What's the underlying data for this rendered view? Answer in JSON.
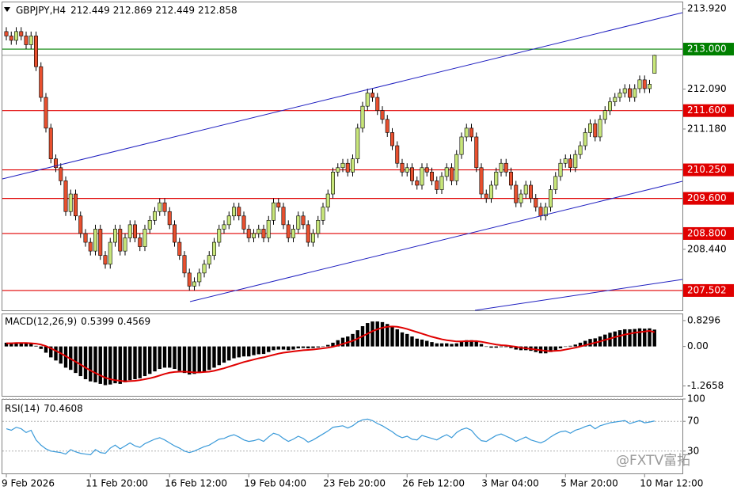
{
  "chart_data": [
    {
      "type": "candlestick",
      "title": "GBPJPY,H4",
      "up_color": "#c8e67a",
      "down_color": "#e8502f",
      "open": [
        213.4,
        213.3,
        213.2,
        213.4,
        213.3,
        213.1,
        213.3,
        212.6,
        211.9,
        211.2,
        210.5,
        210.3,
        210.0,
        209.3,
        209.7,
        209.2,
        208.8,
        208.6,
        208.4,
        208.9,
        208.3,
        208.1,
        208.6,
        208.9,
        208.4,
        208.7,
        209.0,
        208.7,
        208.5,
        208.9,
        209.1,
        209.3,
        209.5,
        209.3,
        209.0,
        208.6,
        208.3,
        207.9,
        207.6,
        207.7,
        207.9,
        208.1,
        208.3,
        208.6,
        208.9,
        209.0,
        209.2,
        209.4,
        209.2,
        208.9,
        208.7,
        208.8,
        208.9,
        208.7,
        209.1,
        209.5,
        209.4,
        209.0,
        208.7,
        208.9,
        209.2,
        209.0,
        208.6,
        208.8,
        209.1,
        209.4,
        209.7,
        210.2,
        210.3,
        210.4,
        210.2,
        210.5,
        211.2,
        211.7,
        212.0,
        211.9,
        211.6,
        211.4,
        211.1,
        210.8,
        210.4,
        210.2,
        210.3,
        210.0,
        209.9,
        210.3,
        210.2,
        210.0,
        209.8,
        210.1,
        210.3,
        210.0,
        210.6,
        211.0,
        211.2,
        211.0,
        210.3,
        209.7,
        209.6,
        209.9,
        210.2,
        210.4,
        210.2,
        209.9,
        209.5,
        209.7,
        209.9,
        209.6,
        209.4,
        209.2,
        209.4,
        209.8,
        210.1,
        210.4,
        210.5,
        210.3,
        210.6,
        210.8,
        211.1,
        211.3,
        211.0,
        211.4,
        211.6,
        211.8,
        211.9,
        212.0,
        212.1,
        211.9,
        212.1,
        212.3,
        212.1,
        212.449
      ],
      "high": [
        213.5,
        213.4,
        213.5,
        213.5,
        213.4,
        213.4,
        213.4,
        212.7,
        212.0,
        211.3,
        210.6,
        210.4,
        210.1,
        209.8,
        209.8,
        209.3,
        208.9,
        208.7,
        209.0,
        209.0,
        208.4,
        208.7,
        209.0,
        209.0,
        208.8,
        209.1,
        209.1,
        208.8,
        209.0,
        209.2,
        209.4,
        209.6,
        209.6,
        209.4,
        209.1,
        208.7,
        208.4,
        208.0,
        207.8,
        208.0,
        208.2,
        208.4,
        208.7,
        209.0,
        209.1,
        209.3,
        209.5,
        209.5,
        209.3,
        209.0,
        208.9,
        209.0,
        209.0,
        209.2,
        209.6,
        209.6,
        209.5,
        209.1,
        209.0,
        209.3,
        209.3,
        209.1,
        208.9,
        209.2,
        209.5,
        209.8,
        210.3,
        210.4,
        210.5,
        210.5,
        210.6,
        211.3,
        211.8,
        212.1,
        212.1,
        212.0,
        211.7,
        211.5,
        211.2,
        210.9,
        210.5,
        210.4,
        210.4,
        210.1,
        210.4,
        210.4,
        210.3,
        210.1,
        210.2,
        210.4,
        210.4,
        210.7,
        211.1,
        211.3,
        211.3,
        211.1,
        210.4,
        209.8,
        210.0,
        210.3,
        210.5,
        210.5,
        210.3,
        210.0,
        209.8,
        210.0,
        210.0,
        209.7,
        209.5,
        209.5,
        209.9,
        210.2,
        210.5,
        210.6,
        210.6,
        210.7,
        210.9,
        211.2,
        211.4,
        211.4,
        211.5,
        211.7,
        211.9,
        212.0,
        212.1,
        212.2,
        212.2,
        212.2,
        212.4,
        212.4,
        212.3,
        212.869
      ],
      "low": [
        213.2,
        213.1,
        213.1,
        213.2,
        213.0,
        213.0,
        212.5,
        211.8,
        211.1,
        210.4,
        210.2,
        209.9,
        209.2,
        209.2,
        209.1,
        208.7,
        208.5,
        208.3,
        208.3,
        208.2,
        208.0,
        208.0,
        208.5,
        208.3,
        208.3,
        208.6,
        208.6,
        208.4,
        208.4,
        208.8,
        209.0,
        209.2,
        209.2,
        208.9,
        208.5,
        208.2,
        207.8,
        207.5,
        207.5,
        207.6,
        207.8,
        208.0,
        208.2,
        208.5,
        208.8,
        208.9,
        209.1,
        209.1,
        208.8,
        208.6,
        208.6,
        208.7,
        208.6,
        208.6,
        209.0,
        209.3,
        208.9,
        208.6,
        208.6,
        208.8,
        208.9,
        208.5,
        208.5,
        208.7,
        209.0,
        209.3,
        209.6,
        210.1,
        210.2,
        210.1,
        210.1,
        210.4,
        211.1,
        211.6,
        211.8,
        211.5,
        211.3,
        211.0,
        210.7,
        210.3,
        210.1,
        210.1,
        209.9,
        209.8,
        209.8,
        210.1,
        209.9,
        209.7,
        209.7,
        210.0,
        209.9,
        209.9,
        210.5,
        210.9,
        210.9,
        210.2,
        209.6,
        209.5,
        209.5,
        209.8,
        210.1,
        210.1,
        209.8,
        209.4,
        209.4,
        209.6,
        209.5,
        209.3,
        209.1,
        209.1,
        209.3,
        209.7,
        210.0,
        210.3,
        210.2,
        210.2,
        210.5,
        210.7,
        211.0,
        210.9,
        210.9,
        211.3,
        211.5,
        211.7,
        211.8,
        211.9,
        211.8,
        211.8,
        212.0,
        212.0,
        212.0,
        212.449
      ],
      "close": [
        213.3,
        213.2,
        213.4,
        213.3,
        213.1,
        213.3,
        212.6,
        211.9,
        211.2,
        210.5,
        210.3,
        210.0,
        209.3,
        209.7,
        209.2,
        208.8,
        208.6,
        208.4,
        208.9,
        208.3,
        208.1,
        208.6,
        208.9,
        208.4,
        208.7,
        209.0,
        208.7,
        208.5,
        208.9,
        209.1,
        209.3,
        209.5,
        209.3,
        209.0,
        208.6,
        208.3,
        207.9,
        207.6,
        207.7,
        207.9,
        208.1,
        208.3,
        208.6,
        208.9,
        209.0,
        209.2,
        209.4,
        209.2,
        208.9,
        208.7,
        208.8,
        208.9,
        208.7,
        209.1,
        209.5,
        209.4,
        209.0,
        208.7,
        208.9,
        209.2,
        209.0,
        208.6,
        208.8,
        209.1,
        209.4,
        209.7,
        210.2,
        210.3,
        210.4,
        210.2,
        210.5,
        211.2,
        211.7,
        212.0,
        211.9,
        211.6,
        211.4,
        211.1,
        210.8,
        210.4,
        210.2,
        210.3,
        210.0,
        209.9,
        210.3,
        210.2,
        210.0,
        209.8,
        210.1,
        210.3,
        210.0,
        210.6,
        211.0,
        211.2,
        211.0,
        210.3,
        209.7,
        209.6,
        209.9,
        210.2,
        210.4,
        210.2,
        209.9,
        209.5,
        209.7,
        209.9,
        209.6,
        209.4,
        209.2,
        209.4,
        209.8,
        210.1,
        210.4,
        210.5,
        210.3,
        210.6,
        210.8,
        211.1,
        211.3,
        211.0,
        211.4,
        211.6,
        211.8,
        211.9,
        212.0,
        212.1,
        211.9,
        212.1,
        212.3,
        212.1,
        212.2,
        212.858
      ],
      "ylim": [
        207.05,
        214.083
      ],
      "yticks": [
        {
          "value": 213.92,
          "label": "213.920"
        },
        {
          "value": 212.09,
          "label": "212.090"
        },
        {
          "value": 211.18,
          "label": "211.180"
        },
        {
          "value": 208.44,
          "label": "208.440"
        }
      ],
      "levels": [
        {
          "value": 213,
          "label": "213.000",
          "color": "#008000"
        },
        {
          "value": 211.6,
          "label": "211.600",
          "color": "#e00000"
        },
        {
          "value": 210.25,
          "label": "210.250",
          "color": "#e00000"
        },
        {
          "value": 209.6,
          "label": "209.600",
          "color": "#e00000"
        },
        {
          "value": 208.8,
          "label": "208.800",
          "color": "#e00000"
        },
        {
          "value": 207.502,
          "color": "#e00000"
        }
      ],
      "xticks": [
        {
          "value": 0,
          "label": "9 Feb 2026"
        },
        {
          "value": 17,
          "label": "11 Feb 20:00"
        },
        {
          "value": 33,
          "label": "16 Feb 12:00"
        },
        {
          "value": 49,
          "label": "19 Feb 04:00"
        },
        {
          "value": 65,
          "label": "23 Feb 20:00"
        },
        {
          "value": 81,
          "label": "26 Feb 12:00"
        },
        {
          "value": 97,
          "label": "3 Mar 04:00"
        },
        {
          "value": 113,
          "label": "5 Mar 20:00"
        },
        {
          "value": 129,
          "label": "10 Mar 12:00"
        }
      ]
    },
    {
      "type": "macd",
      "title": "MACD(12,26,9)",
      "bar_color": "#000000",
      "signal_color": "#e00000",
      "histogram": [
        0.12,
        0.12,
        0.13,
        0.12,
        0.1,
        0.08,
        0.02,
        -0.08,
        -0.2,
        -0.35,
        -0.45,
        -0.55,
        -0.68,
        -0.75,
        -0.85,
        -0.95,
        -1.05,
        -1.12,
        -1.15,
        -1.2,
        -1.24,
        -1.22,
        -1.18,
        -1.2,
        -1.15,
        -1.08,
        -1.05,
        -1.02,
        -0.95,
        -0.88,
        -0.8,
        -0.72,
        -0.68,
        -0.68,
        -0.72,
        -0.78,
        -0.85,
        -0.9,
        -0.88,
        -0.85,
        -0.8,
        -0.75,
        -0.68,
        -0.6,
        -0.52,
        -0.45,
        -0.38,
        -0.35,
        -0.32,
        -0.32,
        -0.28,
        -0.25,
        -0.24,
        -0.18,
        -0.12,
        -0.1,
        -0.1,
        -0.12,
        -0.1,
        -0.06,
        -0.05,
        -0.06,
        -0.05,
        -0.03,
        0.0,
        0.05,
        0.12,
        0.2,
        0.28,
        0.32,
        0.4,
        0.52,
        0.65,
        0.75,
        0.8,
        0.8,
        0.78,
        0.72,
        0.65,
        0.55,
        0.45,
        0.4,
        0.32,
        0.25,
        0.22,
        0.18,
        0.14,
        0.1,
        0.1,
        0.1,
        0.08,
        0.1,
        0.15,
        0.2,
        0.2,
        0.16,
        0.08,
        0.0,
        -0.04,
        -0.04,
        -0.02,
        -0.02,
        -0.05,
        -0.1,
        -0.12,
        -0.12,
        -0.14,
        -0.18,
        -0.22,
        -0.22,
        -0.18,
        -0.12,
        -0.06,
        0.0,
        0.02,
        0.06,
        0.12,
        0.18,
        0.24,
        0.26,
        0.32,
        0.38,
        0.44,
        0.48,
        0.52,
        0.55,
        0.55,
        0.56,
        0.58,
        0.57,
        0.58,
        0.5399
      ],
      "signal": [
        0.1,
        0.1,
        0.11,
        0.11,
        0.11,
        0.1,
        0.09,
        0.06,
        0.01,
        -0.06,
        -0.14,
        -0.22,
        -0.31,
        -0.4,
        -0.49,
        -0.58,
        -0.68,
        -0.77,
        -0.85,
        -0.93,
        -1.0,
        -1.05,
        -1.08,
        -1.1,
        -1.12,
        -1.11,
        -1.1,
        -1.08,
        -1.05,
        -1.02,
        -0.98,
        -0.93,
        -0.88,
        -0.84,
        -0.82,
        -0.81,
        -0.81,
        -0.82,
        -0.83,
        -0.83,
        -0.82,
        -0.81,
        -0.78,
        -0.74,
        -0.7,
        -0.65,
        -0.6,
        -0.55,
        -0.5,
        -0.46,
        -0.42,
        -0.38,
        -0.35,
        -0.31,
        -0.27,
        -0.23,
        -0.2,
        -0.18,
        -0.16,
        -0.14,
        -0.12,
        -0.11,
        -0.1,
        -0.08,
        -0.06,
        -0.04,
        -0.01,
        0.03,
        0.08,
        0.13,
        0.18,
        0.25,
        0.33,
        0.41,
        0.49,
        0.55,
        0.6,
        0.63,
        0.64,
        0.63,
        0.6,
        0.56,
        0.51,
        0.46,
        0.41,
        0.36,
        0.31,
        0.27,
        0.23,
        0.2,
        0.18,
        0.16,
        0.16,
        0.17,
        0.17,
        0.17,
        0.15,
        0.12,
        0.09,
        0.06,
        0.04,
        0.03,
        0.01,
        -0.01,
        -0.04,
        -0.06,
        -0.08,
        -0.1,
        -0.12,
        -0.14,
        -0.15,
        -0.14,
        -0.13,
        -0.1,
        -0.07,
        -0.04,
        0.0,
        0.04,
        0.08,
        0.12,
        0.16,
        0.21,
        0.25,
        0.3,
        0.34,
        0.38,
        0.41,
        0.44,
        0.46,
        0.48,
        0.5,
        0.4569
      ],
      "ylim": [
        -1.583,
        1.056
      ],
      "yticks": [
        0.8296,
        {
          "value": 0,
          "label": "0.00"
        },
        -1.2658
      ]
    },
    {
      "type": "rsi",
      "title": "RSI(14)",
      "color": "#3a9ad9",
      "values": [
        60,
        58,
        62,
        60,
        55,
        58,
        45,
        38,
        33,
        30,
        29,
        28,
        26,
        32,
        29,
        27,
        26,
        25,
        32,
        28,
        27,
        34,
        38,
        33,
        37,
        41,
        37,
        35,
        40,
        43,
        46,
        48,
        45,
        41,
        37,
        34,
        30,
        28,
        30,
        33,
        36,
        38,
        42,
        46,
        47,
        50,
        52,
        49,
        45,
        43,
        44,
        46,
        43,
        49,
        54,
        52,
        47,
        43,
        46,
        50,
        47,
        42,
        45,
        49,
        53,
        57,
        62,
        63,
        64,
        61,
        64,
        69,
        72,
        73,
        71,
        67,
        64,
        60,
        56,
        51,
        48,
        50,
        46,
        45,
        51,
        49,
        47,
        45,
        49,
        52,
        48,
        55,
        59,
        61,
        58,
        50,
        44,
        43,
        47,
        51,
        53,
        50,
        47,
        43,
        46,
        49,
        45,
        43,
        41,
        44,
        49,
        53,
        56,
        57,
        54,
        58,
        60,
        63,
        65,
        60,
        64,
        66,
        68,
        69,
        70,
        71,
        67,
        69,
        71,
        68,
        69,
        70.4608
      ],
      "ylim": [
        0,
        100
      ],
      "yticks": [
        100,
        70,
        30
      ],
      "watermark": "@FXTV富拓"
    }
  ]
}
